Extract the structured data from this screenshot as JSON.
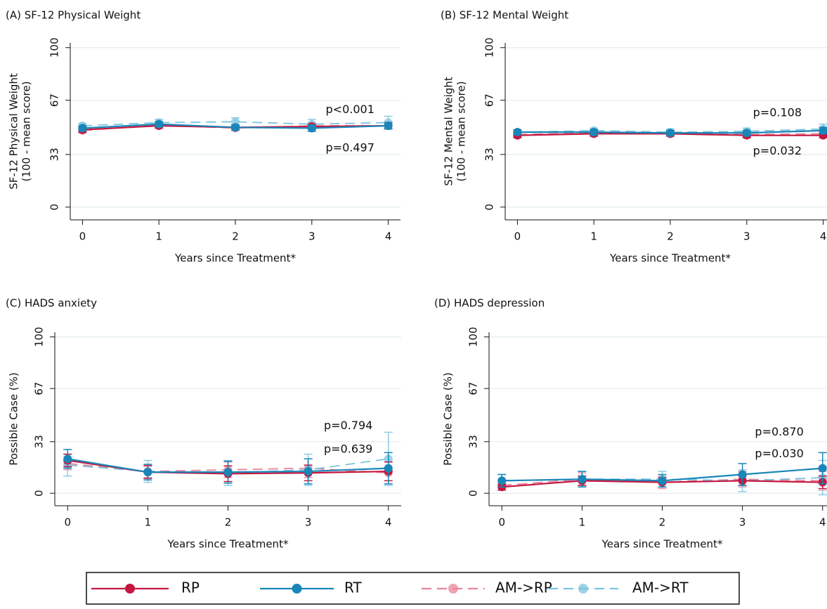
{
  "chart_data": [
    {
      "type": "line",
      "title": "(A) SF-12 Physical Weight",
      "ylabel": [
        "SF-12 Physical Weight",
        "(100 - mean score)"
      ],
      "xlabel": "Years since Treatment*",
      "x": [
        0,
        1,
        2,
        3,
        4
      ],
      "xlim": [
        -0.16,
        4.16
      ],
      "xticks": [
        0,
        1,
        2,
        3,
        4
      ],
      "ylim": [
        -8,
        103
      ],
      "yticks": [
        0,
        33,
        67,
        100
      ],
      "grid": true,
      "annotations": [
        {
          "text": "p<0.001",
          "color": "#1a86b8"
        },
        {
          "text": "p=0.497",
          "color": "#c5163f"
        }
      ],
      "series": [
        {
          "name": "RP",
          "color": "#c5163f",
          "linestyle": "solid",
          "values": [
            48.5,
            51,
            50,
            50.5,
            51
          ],
          "errors": [
            1.5,
            1.5,
            1.5,
            1.5,
            2
          ]
        },
        {
          "name": "RT",
          "color": "#1a86b8",
          "linestyle": "solid",
          "values": [
            49.5,
            52,
            50,
            49.5,
            51
          ],
          "errors": [
            1.5,
            1.5,
            1.5,
            2,
            2
          ]
        },
        {
          "name": "AM->RP",
          "color": "#e8849a",
          "linestyle": "dashed",
          "values": [
            48,
            51.5,
            49.5,
            51,
            51
          ],
          "errors": [
            1.5,
            1.5,
            1.5,
            2,
            2
          ]
        },
        {
          "name": "AM->RT",
          "color": "#7cc4de",
          "linestyle": "dashed",
          "values": [
            51,
            53,
            53.5,
            52,
            53
          ],
          "errors": [
            1.5,
            2,
            2.5,
            3,
            4
          ]
        }
      ]
    },
    {
      "type": "line",
      "title": "(B) SF-12 Mental Weight",
      "ylabel": [
        "SF-12 Mental Weight",
        "(100 - mean score)"
      ],
      "xlabel": "Years since Treatment*",
      "x": [
        0,
        1,
        2,
        3,
        4
      ],
      "xlim": [
        -0.16,
        4.16
      ],
      "xticks": [
        0,
        1,
        2,
        3,
        4
      ],
      "ylim": [
        -8,
        103
      ],
      "yticks": [
        0,
        33,
        67,
        100
      ],
      "grid": true,
      "annotations": [
        {
          "text": "p=0.108",
          "color": "#1a86b8"
        },
        {
          "text": "p=0.032",
          "color": "#c5163f"
        }
      ],
      "series": [
        {
          "name": "RP",
          "color": "#c5163f",
          "linestyle": "solid",
          "values": [
            45,
            46,
            46,
            45,
            45
          ],
          "errors": [
            1.5,
            1.5,
            1.5,
            1.5,
            1.5
          ]
        },
        {
          "name": "RT",
          "color": "#1a86b8",
          "linestyle": "solid",
          "values": [
            47,
            47,
            46.5,
            46.5,
            48
          ],
          "errors": [
            1.5,
            1.5,
            1.5,
            1.5,
            2
          ]
        },
        {
          "name": "AM->RP",
          "color": "#e8849a",
          "linestyle": "dashed",
          "values": [
            45.5,
            46.5,
            46,
            45.5,
            46
          ],
          "errors": [
            1.5,
            1.5,
            1.5,
            1.5,
            2
          ]
        },
        {
          "name": "AM->RT",
          "color": "#7cc4de",
          "linestyle": "dashed",
          "values": [
            47,
            48,
            47,
            47.5,
            49
          ],
          "errors": [
            1.5,
            1.5,
            2,
            2,
            3
          ]
        }
      ]
    },
    {
      "type": "line",
      "title": "(C) HADS anxiety",
      "ylabel": [
        "Possible Case (%)"
      ],
      "xlabel": "Years since Treatment*",
      "x": [
        0,
        1,
        2,
        3,
        4
      ],
      "xlim": [
        -0.16,
        4.16
      ],
      "xticks": [
        0,
        1,
        2,
        3,
        4
      ],
      "ylim": [
        -8,
        103
      ],
      "yticks": [
        0,
        33,
        67,
        100
      ],
      "grid": true,
      "annotations": [
        {
          "text": "p=0.794",
          "color": "#1a86b8"
        },
        {
          "text": "p=0.639",
          "color": "#c5163f"
        }
      ],
      "series": [
        {
          "name": "RP",
          "color": "#c5163f",
          "linestyle": "solid",
          "values": [
            21,
            13.5,
            12.5,
            13,
            14
          ],
          "errors": [
            4,
            4,
            5,
            5,
            6
          ]
        },
        {
          "name": "RT",
          "color": "#1a86b8",
          "linestyle": "solid",
          "values": [
            22,
            13.5,
            13.5,
            14,
            16
          ],
          "errors": [
            6,
            5,
            7,
            8,
            10
          ]
        },
        {
          "name": "AM->RP",
          "color": "#e8849a",
          "linestyle": "dashed",
          "values": [
            19,
            14,
            15,
            16,
            13
          ],
          "errors": [
            4,
            4,
            5,
            6,
            7
          ]
        },
        {
          "name": "AM->RT",
          "color": "#7cc4de",
          "linestyle": "dashed",
          "values": [
            18,
            14,
            13,
            15,
            22
          ],
          "errors": [
            7,
            7,
            8,
            10,
            17
          ]
        }
      ]
    },
    {
      "type": "line",
      "title": "(D) HADS depression",
      "ylabel": [
        "Possible Case (%)"
      ],
      "xlabel": "Years since Treatment*",
      "x": [
        0,
        1,
        2,
        3,
        4
      ],
      "xlim": [
        -0.16,
        4.16
      ],
      "xticks": [
        0,
        1,
        2,
        3,
        4
      ],
      "ylim": [
        -8,
        103
      ],
      "yticks": [
        0,
        33,
        67,
        100
      ],
      "grid": true,
      "annotations": [
        {
          "text": "p=0.870",
          "color": "#1a86b8"
        },
        {
          "text": "p=0.030",
          "color": "#c5163f"
        }
      ],
      "series": [
        {
          "name": "RP",
          "color": "#c5163f",
          "linestyle": "solid",
          "values": [
            4,
            8,
            7,
            8,
            7
          ],
          "errors": [
            2,
            3,
            3,
            3,
            4
          ]
        },
        {
          "name": "RT",
          "color": "#1a86b8",
          "linestyle": "solid",
          "values": [
            8,
            9,
            8,
            12,
            16
          ],
          "errors": [
            4,
            5,
            4,
            7,
            10
          ]
        },
        {
          "name": "AM->RP",
          "color": "#e8849a",
          "linestyle": "dashed",
          "values": [
            5,
            9,
            7,
            9,
            8
          ],
          "errors": [
            3,
            4,
            4,
            5,
            6
          ]
        },
        {
          "name": "AM->RT",
          "color": "#7cc4de",
          "linestyle": "dashed",
          "values": [
            8,
            9,
            9,
            8,
            10
          ],
          "errors": [
            4,
            5,
            5,
            7,
            11
          ]
        }
      ]
    }
  ]
}
